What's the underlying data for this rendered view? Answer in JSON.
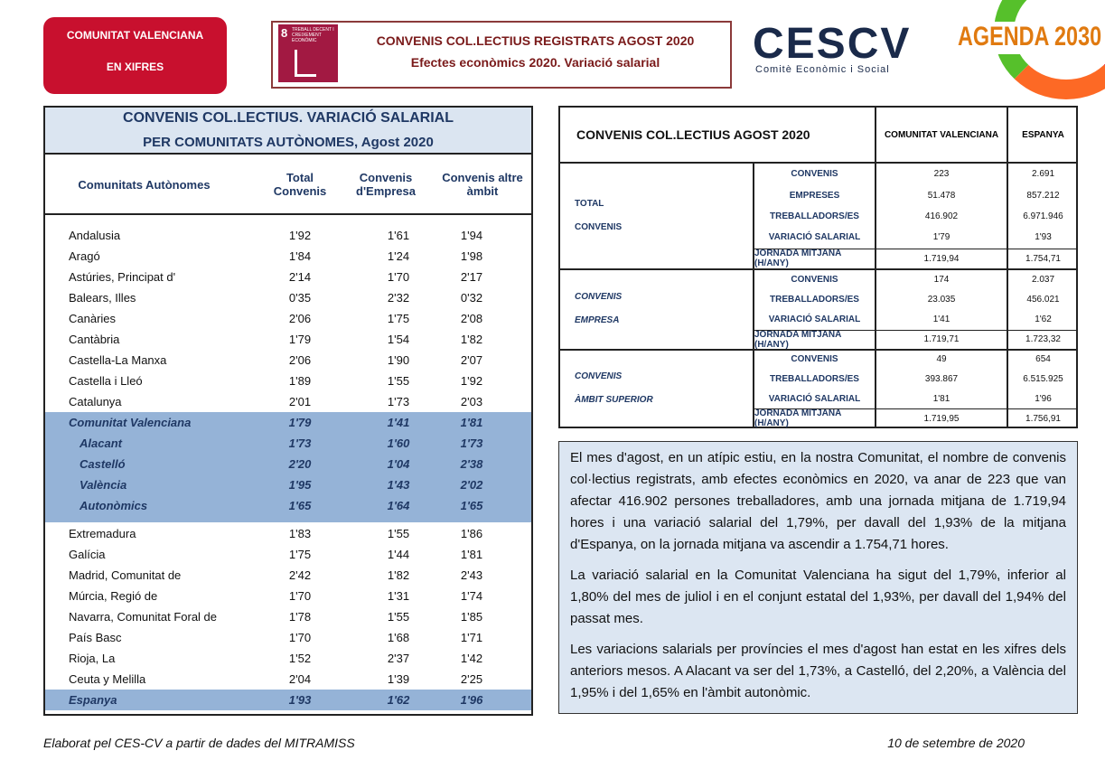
{
  "header": {
    "badge": [
      "COMUNITAT VALENCIANA",
      "EN XIFRES"
    ],
    "sdg": [
      "8",
      "TREBALL DECENT I CREIXEMENT ECONÒMIC"
    ],
    "title": [
      "CONVENIS COL.LECTIUS REGISTRATS AGOST 2020",
      "Efectes econòmics 2020. Variació salarial"
    ],
    "logo": "CESCV",
    "logo_subtitle": "Comitè Econòmic i Social",
    "agenda": "AGENDA 2030"
  },
  "left_table": {
    "title": [
      "CONVENIS COL.LECTIUS. VARIACIÓ SALARIAL",
      "PER COMUNITATS AUTÒNOMES, Agost 2020"
    ],
    "columns": [
      "Comunitats Autònomes",
      "Total Convenis",
      "Convenis d'Empresa",
      "Convenis altre àmbit"
    ],
    "groups": [
      {
        "highlight": false,
        "rows": [
          [
            "Andalusia",
            "1'92",
            "1'61",
            "1'94"
          ],
          [
            "Aragó",
            "1'84",
            "1'24",
            "1'98"
          ],
          [
            "Astúries, Principat d'",
            "2'14",
            "1'70",
            "2'17"
          ],
          [
            "Balears, Illes",
            "0'35",
            "2'32",
            "0'32"
          ],
          [
            "Canàries",
            "2'06",
            "1'75",
            "2'08"
          ],
          [
            "Cantàbria",
            "1'79",
            "1'54",
            "1'82"
          ],
          [
            "Castella-La Manxa",
            "2'06",
            "1'90",
            "2'07"
          ],
          [
            "Castella i Lleó",
            "1'89",
            "1'55",
            "1'92"
          ],
          [
            "Catalunya",
            "2'01",
            "1'73",
            "2'03"
          ]
        ]
      },
      {
        "highlight": true,
        "rows": [
          [
            "Comunitat Valenciana",
            "1'79",
            "1'41",
            "1'81"
          ],
          [
            "Alacant",
            "1'73",
            "1'60",
            "1'73"
          ],
          [
            "Castelló",
            "2'20",
            "1'04",
            "2'38"
          ],
          [
            "València",
            "1'95",
            "1'43",
            "2'02"
          ],
          [
            "Autonòmics",
            "1'65",
            "1'64",
            "1'65"
          ]
        ]
      },
      {
        "highlight": false,
        "rows": [
          [
            "Extremadura",
            "1'83",
            "1'55",
            "1'86"
          ],
          [
            "Galícia",
            "1'75",
            "1'44",
            "1'81"
          ],
          [
            "Madrid, Comunitat de",
            "2'42",
            "1'82",
            "2'43"
          ],
          [
            "Múrcia, Regió de",
            "1'70",
            "1'31",
            "1'74"
          ],
          [
            "Navarra, Comunitat Foral de",
            "1'78",
            "1'55",
            "1'85"
          ],
          [
            "País Basc",
            "1'70",
            "1'68",
            "1'71"
          ],
          [
            "Rioja, La",
            "1'52",
            "2'37",
            "1'42"
          ],
          [
            "Ceuta y Melilla",
            "2'04",
            "1'39",
            "2'25"
          ]
        ]
      },
      {
        "highlight": true,
        "rows": [
          [
            "Espanya",
            "1'93",
            "1'62",
            "1'96"
          ]
        ]
      }
    ]
  },
  "right_table": {
    "title": "CONVENIS COL.LECTIUS AGOST 2020",
    "columns": [
      "COMUNITAT VALENCIANA",
      "ESPANYA"
    ],
    "blocks": [
      {
        "label": [
          "TOTAL",
          "CONVENIS"
        ],
        "rows": [
          [
            "CONVENIS",
            "223",
            "2.691"
          ],
          [
            "EMPRESES",
            "51.478",
            "857.212"
          ],
          [
            "TREBALLADORS/ES",
            "416.902",
            "6.971.946"
          ],
          [
            "VARIACIÓ SALARIAL",
            "1'79",
            "1'93"
          ],
          [
            "JORNADA MITJANA (H/ANY)",
            "1.719,94",
            "1.754,71"
          ]
        ]
      },
      {
        "label": [
          "CONVENIS",
          "EMPRESA"
        ],
        "rows": [
          [
            "CONVENIS",
            "174",
            "2.037"
          ],
          [
            "TREBALLADORS/ES",
            "23.035",
            "456.021"
          ],
          [
            "VARIACIÓ SALARIAL",
            "1'41",
            "1'62"
          ],
          [
            "JORNADA MITJANA (H/ANY)",
            "1.719,71",
            "1.723,32"
          ]
        ]
      },
      {
        "label": [
          "CONVENIS",
          "ÀMBIT SUPERIOR"
        ],
        "rows": [
          [
            "CONVENIS",
            "49",
            "654"
          ],
          [
            "TREBALLADORS/ES",
            "393.867",
            "6.515.925"
          ],
          [
            "VARIACIÓ SALARIAL",
            "1'81",
            "1'96"
          ],
          [
            "JORNADA MITJANA (H/ANY)",
            "1.719,95",
            "1.756,91"
          ]
        ]
      }
    ]
  },
  "text": [
    "El mes d'agost, en un atípic estiu, en la nostra Comunitat, el nombre de convenis col·lectius registrats, amb efectes econòmics en 2020, va anar de 223 que van afectar 416.902 persones treballadores, amb una jornada mitjana de 1.719,94 hores i una variació salarial del 1,79%, per davall del 1,93% de la mitjana d'Espanya, on la jornada mitjana va ascendir a 1.754,71 hores.",
    "La variació salarial en la Comunitat Valenciana ha sigut del 1,79%, inferior al 1,80% del mes de juliol i en el conjunt estatal del 1,93%, per davall del 1,94% del passat mes.",
    "Les variacions salarials per províncies el mes d'agost han estat en les xifres dels anteriors mesos. A Alacant va ser del 1,73%, a Castelló, del 2,20%, a València del 1,95% i del 1,65% en l'àmbit autonòmic."
  ],
  "footer": {
    "source": "Elaborat pel CES-CV a partir de dades del MITRAMISS",
    "date": "10 de setembre de 2020"
  }
}
